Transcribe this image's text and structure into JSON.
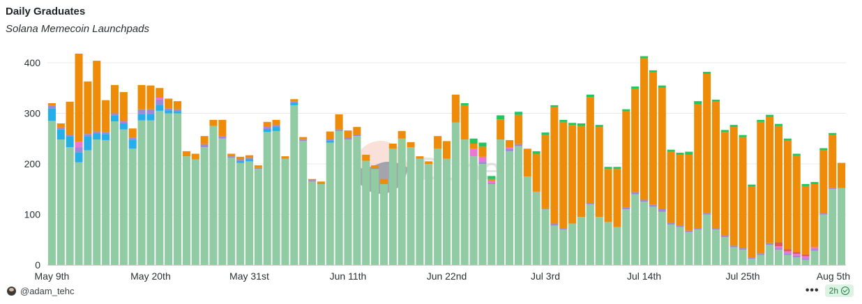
{
  "chart_data": {
    "type": "bar",
    "stacked": true,
    "title": "Daily Graduates",
    "subtitle": "Solana Memecoin Launchpads",
    "ylim": [
      0,
      420
    ],
    "yticks": [
      0,
      100,
      200,
      300,
      400
    ],
    "x_tick_labels": [
      "May 9th",
      "May 20th",
      "May 31st",
      "Jun 11th",
      "Jun 22nd",
      "Jul 3rd",
      "Jul 14th",
      "Jul 25th",
      "Aug 5th"
    ],
    "x_tick_indices": [
      0,
      11,
      22,
      33,
      44,
      55,
      66,
      77,
      88
    ],
    "categories": [
      "May 9",
      "May 10",
      "May 11",
      "May 12",
      "May 13",
      "May 14",
      "May 15",
      "May 16",
      "May 17",
      "May 18",
      "May 19",
      "May 20",
      "May 21",
      "May 22",
      "May 23",
      "May 24",
      "May 25",
      "May 26",
      "May 27",
      "May 28",
      "May 29",
      "May 30",
      "May 31",
      "Jun 1",
      "Jun 2",
      "Jun 3",
      "Jun 4",
      "Jun 5",
      "Jun 6",
      "Jun 7",
      "Jun 8",
      "Jun 9",
      "Jun 10",
      "Jun 11",
      "Jun 12",
      "Jun 13",
      "Jun 14",
      "Jun 15",
      "Jun 16",
      "Jun 17",
      "Jun 18",
      "Jun 19",
      "Jun 20",
      "Jun 21",
      "Jun 22",
      "Jun 23",
      "Jun 24",
      "Jun 25",
      "Jun 26",
      "Jun 27",
      "Jun 28",
      "Jun 29",
      "Jun 30",
      "Jul 1",
      "Jul 2",
      "Jul 3",
      "Jul 4",
      "Jul 5",
      "Jul 6",
      "Jul 7",
      "Jul 8",
      "Jul 9",
      "Jul 10",
      "Jul 11",
      "Jul 12",
      "Jul 13",
      "Jul 14",
      "Jul 15",
      "Jul 16",
      "Jul 17",
      "Jul 18",
      "Jul 19",
      "Jul 20",
      "Jul 21",
      "Jul 22",
      "Jul 23",
      "Jul 24",
      "Jul 25",
      "Jul 26",
      "Jul 27",
      "Jul 28",
      "Jul 29",
      "Jul 30",
      "Jul 31",
      "Aug 1",
      "Aug 2",
      "Aug 3",
      "Aug 4",
      "Aug 5"
    ],
    "series": [
      {
        "name": "Green",
        "color": "#91cba4",
        "values": [
          285,
          248,
          233,
          203,
          227,
          248,
          247,
          284,
          268,
          230,
          286,
          286,
          305,
          300,
          300,
          215,
          209,
          233,
          275,
          250,
          212,
          202,
          205,
          190,
          263,
          265,
          210,
          316,
          245,
          165,
          160,
          242,
          265,
          248,
          255,
          206,
          190,
          160,
          230,
          250,
          233,
          210,
          200,
          230,
          210,
          282,
          248,
          215,
          200,
          160,
          248,
          225,
          235,
          175,
          145,
          110,
          78,
          70,
          82,
          95,
          120,
          95,
          85,
          75,
          110,
          140,
          125,
          115,
          105,
          80,
          75,
          65,
          70,
          100,
          70,
          55,
          35,
          30,
          12,
          20,
          40,
          30,
          20,
          15,
          10,
          28,
          100,
          150,
          152
        ]
      },
      {
        "name": "Blue",
        "color": "#26aee8",
        "values": [
          25,
          20,
          22,
          20,
          28,
          12,
          12,
          12,
          12,
          18,
          12,
          12,
          12,
          6,
          4,
          0,
          0,
          0,
          0,
          0,
          0,
          4,
          4,
          0,
          6,
          8,
          0,
          4,
          0,
          0,
          0,
          4,
          0,
          0,
          0,
          0,
          0,
          0,
          0,
          0,
          0,
          0,
          0,
          0,
          0,
          0,
          0,
          0,
          0,
          0,
          0,
          0,
          0,
          0,
          0,
          0,
          0,
          0,
          0,
          0,
          0,
          0,
          0,
          0,
          0,
          0,
          0,
          0,
          0,
          0,
          0,
          0,
          0,
          0,
          0,
          0,
          0,
          0,
          0,
          0,
          0,
          0,
          0,
          0,
          0,
          0,
          0,
          0,
          0
        ]
      },
      {
        "name": "Purple",
        "color": "#9d89d6",
        "values": [
          5,
          4,
          3,
          10,
          4,
          4,
          4,
          4,
          4,
          4,
          10,
          10,
          10,
          4,
          4,
          0,
          0,
          6,
          0,
          4,
          3,
          3,
          3,
          2,
          4,
          4,
          0,
          3,
          3,
          3,
          0,
          3,
          3,
          3,
          3,
          0,
          2,
          0,
          0,
          0,
          0,
          0,
          0,
          0,
          0,
          0,
          0,
          0,
          4,
          2,
          0,
          4,
          4,
          0,
          0,
          2,
          4,
          3,
          0,
          0,
          2,
          0,
          0,
          0,
          4,
          4,
          4,
          4,
          6,
          4,
          3,
          3,
          3,
          3,
          3,
          3,
          3,
          3,
          3,
          3,
          3,
          3,
          3,
          3,
          3,
          3,
          2,
          2,
          0
        ]
      },
      {
        "name": "Pink",
        "color": "#ea78d2",
        "values": [
          0,
          0,
          0,
          10,
          0,
          0,
          0,
          0,
          0,
          0,
          0,
          0,
          4,
          0,
          0,
          0,
          0,
          0,
          0,
          0,
          0,
          0,
          0,
          0,
          0,
          0,
          0,
          0,
          0,
          0,
          0,
          0,
          0,
          0,
          0,
          0,
          0,
          0,
          0,
          0,
          0,
          0,
          0,
          0,
          0,
          0,
          0,
          15,
          10,
          5,
          0,
          3,
          0,
          0,
          0,
          0,
          0,
          0,
          0,
          0,
          0,
          0,
          0,
          0,
          0,
          0,
          0,
          0,
          0,
          0,
          0,
          0,
          0,
          0,
          0,
          0,
          0,
          0,
          0,
          0,
          0,
          4,
          4,
          4,
          4,
          4,
          0,
          0,
          0
        ]
      },
      {
        "name": "Red",
        "color": "#dc5a5a",
        "values": [
          0,
          0,
          0,
          0,
          0,
          0,
          0,
          0,
          0,
          0,
          0,
          0,
          0,
          0,
          0,
          0,
          0,
          0,
          0,
          0,
          0,
          0,
          0,
          0,
          0,
          0,
          0,
          0,
          0,
          0,
          0,
          0,
          0,
          0,
          0,
          0,
          0,
          0,
          0,
          0,
          0,
          0,
          0,
          0,
          0,
          0,
          0,
          0,
          0,
          0,
          0,
          0,
          0,
          0,
          0,
          0,
          0,
          0,
          0,
          0,
          0,
          0,
          0,
          0,
          0,
          0,
          0,
          0,
          0,
          0,
          0,
          0,
          0,
          0,
          0,
          0,
          0,
          0,
          0,
          0,
          0,
          8,
          4,
          4,
          4,
          0,
          0,
          0,
          0
        ]
      },
      {
        "name": "Orange",
        "color": "#ee8c0a",
        "values": [
          5,
          8,
          65,
          175,
          104,
          140,
          63,
          56,
          58,
          18,
          48,
          47,
          19,
          19,
          16,
          10,
          11,
          16,
          12,
          33,
          5,
          5,
          5,
          5,
          10,
          10,
          5,
          5,
          5,
          2,
          5,
          15,
          30,
          15,
          15,
          12,
          5,
          10,
          10,
          15,
          10,
          5,
          5,
          25,
          35,
          55,
          68,
          10,
          20,
          3,
          40,
          15,
          58,
          55,
          75,
          145,
          230,
          210,
          195,
          180,
          210,
          178,
          105,
          115,
          190,
          205,
          280,
          262,
          240,
          140,
          140,
          150,
          245,
          275,
          250,
          205,
          235,
          220,
          140,
          260,
          250,
          230,
          215,
          190,
          135,
          125,
          125,
          105,
          50
        ]
      },
      {
        "name": "Bright Green",
        "color": "#22c55e",
        "values": [
          0,
          0,
          0,
          0,
          0,
          0,
          0,
          0,
          0,
          0,
          0,
          0,
          0,
          0,
          0,
          0,
          0,
          0,
          0,
          0,
          0,
          0,
          0,
          0,
          0,
          0,
          0,
          0,
          0,
          0,
          0,
          0,
          0,
          0,
          0,
          0,
          0,
          0,
          0,
          0,
          0,
          0,
          0,
          0,
          0,
          0,
          4,
          10,
          8,
          6,
          8,
          0,
          6,
          0,
          5,
          5,
          4,
          4,
          4,
          5,
          5,
          4,
          4,
          4,
          4,
          4,
          4,
          4,
          4,
          4,
          4,
          6,
          6,
          4,
          4,
          4,
          4,
          4,
          4,
          4,
          4,
          4,
          4,
          4,
          4,
          4,
          4,
          4,
          0
        ]
      }
    ]
  },
  "watermark": "Dune",
  "footer": {
    "author": "@adam_tehc",
    "more": "•••",
    "refresh": "2h"
  }
}
